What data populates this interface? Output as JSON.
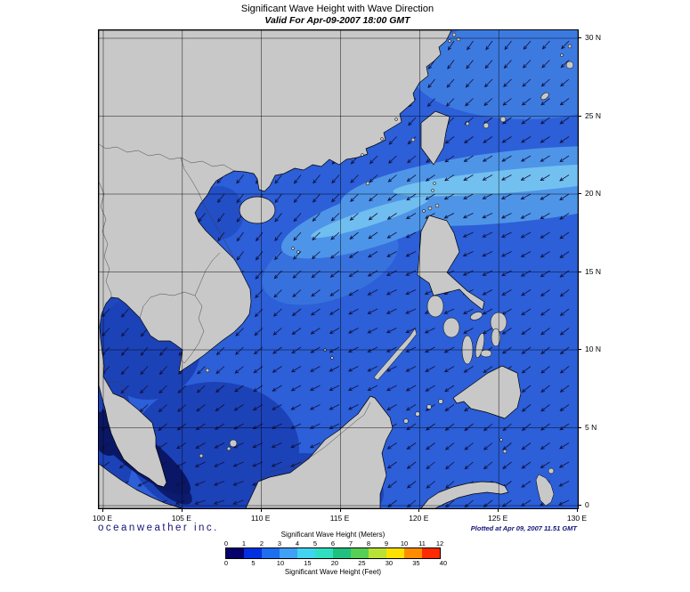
{
  "title": "Significant Wave Height with Wave Direction",
  "subtitle": "Valid For Apr-09-2007 18:00 GMT",
  "footer": {
    "logo_text": "oceanweather inc.",
    "plotted_text": "Plotted at Apr 09, 2007 11.51 GMT"
  },
  "axes": {
    "lon_labels": [
      "100 E",
      "105 E",
      "110 E",
      "115 E",
      "120 E",
      "125 E",
      "130 E"
    ],
    "lat_labels": [
      "30 N",
      "25 N",
      "20 N",
      "15 N",
      "10 N",
      "5 N",
      "0"
    ]
  },
  "legend": {
    "meters_title": "Significant Wave Height (Meters)",
    "feet_title": "Significant Wave Height (Feet)",
    "meters_ticks": [
      "0",
      "1",
      "2",
      "3",
      "4",
      "5",
      "6",
      "7",
      "8",
      "9",
      "10",
      "11",
      "12"
    ],
    "feet_ticks": [
      "0",
      "5",
      "10",
      "15",
      "20",
      "25",
      "30",
      "35",
      "40"
    ],
    "colors": [
      "#05006b",
      "#0030e0",
      "#1e6ef0",
      "#3fa0f5",
      "#40d4f0",
      "#2ee0c0",
      "#20c080",
      "#55d055",
      "#b8e334",
      "#ffe100",
      "#ff8c00",
      "#ff2a00"
    ]
  },
  "map": {
    "colors": {
      "sea_base": "#2c5fd8",
      "sea_dark": "#1c42b8",
      "sea_darkest": "#0a1766",
      "sea_light": "#4e95e8",
      "sea_cyan": "#79c8f0",
      "land": "#c8c8c8",
      "coast": "#000000",
      "grid": "#000000",
      "arrow": "#10103c"
    },
    "arrow_grid": {
      "spacing": 21.5,
      "length": 12
    }
  }
}
